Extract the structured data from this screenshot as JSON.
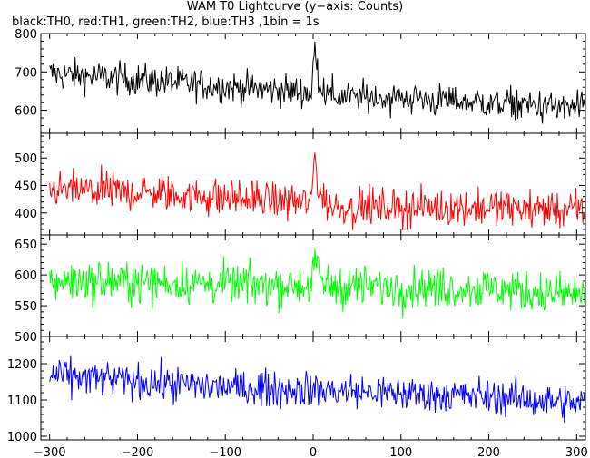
{
  "chart_data": {
    "type": "line",
    "title": "WAM T0 Lightcurve (y−axis: Counts)",
    "subtitle": "black:TH0, red:TH1, green:TH2, blue:TH3 ,1bin = 1s",
    "xlabel": "",
    "xlim": [
      -310,
      310
    ],
    "x_ticks": [
      -300,
      -200,
      -100,
      0,
      100,
      200,
      300
    ],
    "x_tick_labels": [
      "−300",
      "−200",
      "−100",
      "0",
      "100",
      "200",
      "300"
    ],
    "grid": false,
    "panels": [
      {
        "series_name": "TH0",
        "color": "#000000",
        "ylim": [
          540,
          800
        ],
        "y_ticks": [
          600,
          700,
          800
        ],
        "baseline": [
          [
            -300,
            695
          ],
          [
            -200,
            680
          ],
          [
            -100,
            662
          ],
          [
            -10,
            648
          ],
          [
            20,
            636
          ],
          [
            100,
            632
          ],
          [
            200,
            620
          ],
          [
            300,
            604
          ]
        ],
        "noise": 30,
        "peak": {
          "x": 2,
          "height": 120
        }
      },
      {
        "series_name": "TH1",
        "color": "#ff0000",
        "ylim": [
          360,
          545
        ],
        "y_ticks": [
          400,
          450,
          500
        ],
        "baseline": [
          [
            -300,
            442
          ],
          [
            -200,
            438
          ],
          [
            -100,
            428
          ],
          [
            -10,
            420
          ],
          [
            20,
            412
          ],
          [
            100,
            410
          ],
          [
            200,
            410
          ],
          [
            300,
            405
          ]
        ],
        "noise": 24,
        "peak": {
          "x": 2,
          "height": 95
        }
      },
      {
        "series_name": "TH2",
        "color": "#00ff00",
        "ylim": [
          500,
          665
        ],
        "y_ticks": [
          500,
          550,
          600,
          650
        ],
        "baseline": [
          [
            -300,
            590
          ],
          [
            -200,
            588
          ],
          [
            -100,
            585
          ],
          [
            0,
            583
          ],
          [
            100,
            580
          ],
          [
            200,
            578
          ],
          [
            300,
            568
          ]
        ],
        "noise": 24,
        "peak": {
          "x": 2,
          "height": 45
        }
      },
      {
        "series_name": "TH3",
        "color": "#0000ff",
        "ylim": [
          990,
          1275
        ],
        "y_ticks": [
          1000,
          1100,
          1200
        ],
        "baseline": [
          [
            -300,
            1168
          ],
          [
            -200,
            1150
          ],
          [
            -100,
            1135
          ],
          [
            0,
            1128
          ],
          [
            100,
            1118
          ],
          [
            200,
            1110
          ],
          [
            300,
            1090
          ]
        ],
        "noise": 35,
        "peak": {
          "x": 2,
          "height": 0
        }
      }
    ]
  }
}
